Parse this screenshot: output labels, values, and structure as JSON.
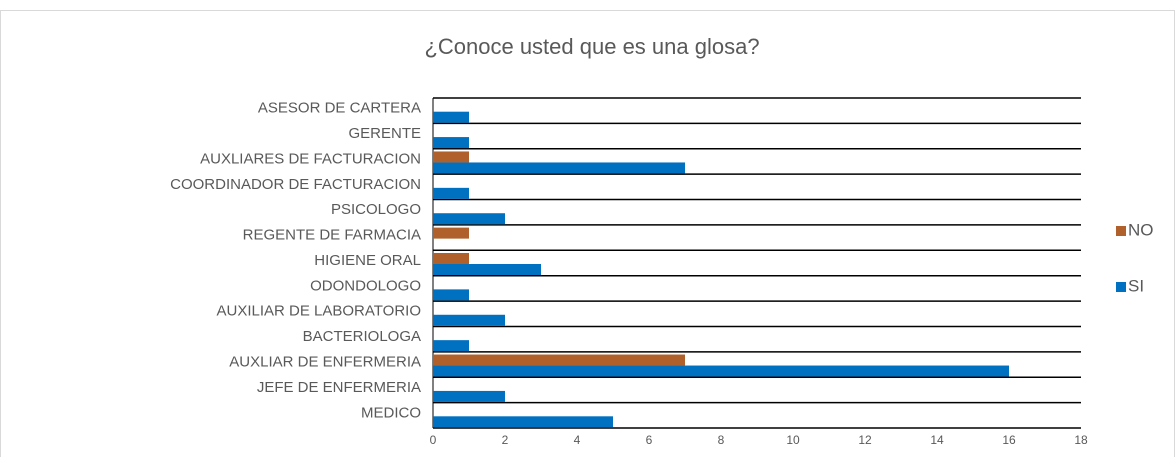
{
  "chart_data": {
    "type": "bar",
    "orientation": "horizontal",
    "title": "¿Conoce usted que es una glosa?",
    "categories": [
      "ASESOR DE CARTERA",
      "GERENTE",
      "AUXLIARES DE FACTURACION",
      "COORDINADOR DE FACTURACION",
      "PSICOLOGO",
      "REGENTE DE FARMACIA",
      "HIGIENE ORAL",
      "ODONDOLOGO",
      "AUXILIAR DE LABORATORIO",
      "BACTERIOLOGA",
      "AUXLIAR DE ENFERMERIA",
      "JEFE DE ENFERMERIA",
      "MEDICO"
    ],
    "series": [
      {
        "name": "NO",
        "color": "#b0602a",
        "values": [
          0,
          0,
          1,
          0,
          0,
          1,
          1,
          0,
          0,
          0,
          7,
          0,
          0
        ]
      },
      {
        "name": "SI",
        "color": "#0070c0",
        "values": [
          1,
          1,
          7,
          1,
          2,
          0,
          3,
          1,
          2,
          1,
          16,
          2,
          5
        ]
      }
    ],
    "xlim": [
      0,
      18
    ],
    "xticks": [
      0,
      2,
      4,
      6,
      8,
      10,
      12,
      14,
      16,
      18
    ],
    "legend": "right"
  }
}
